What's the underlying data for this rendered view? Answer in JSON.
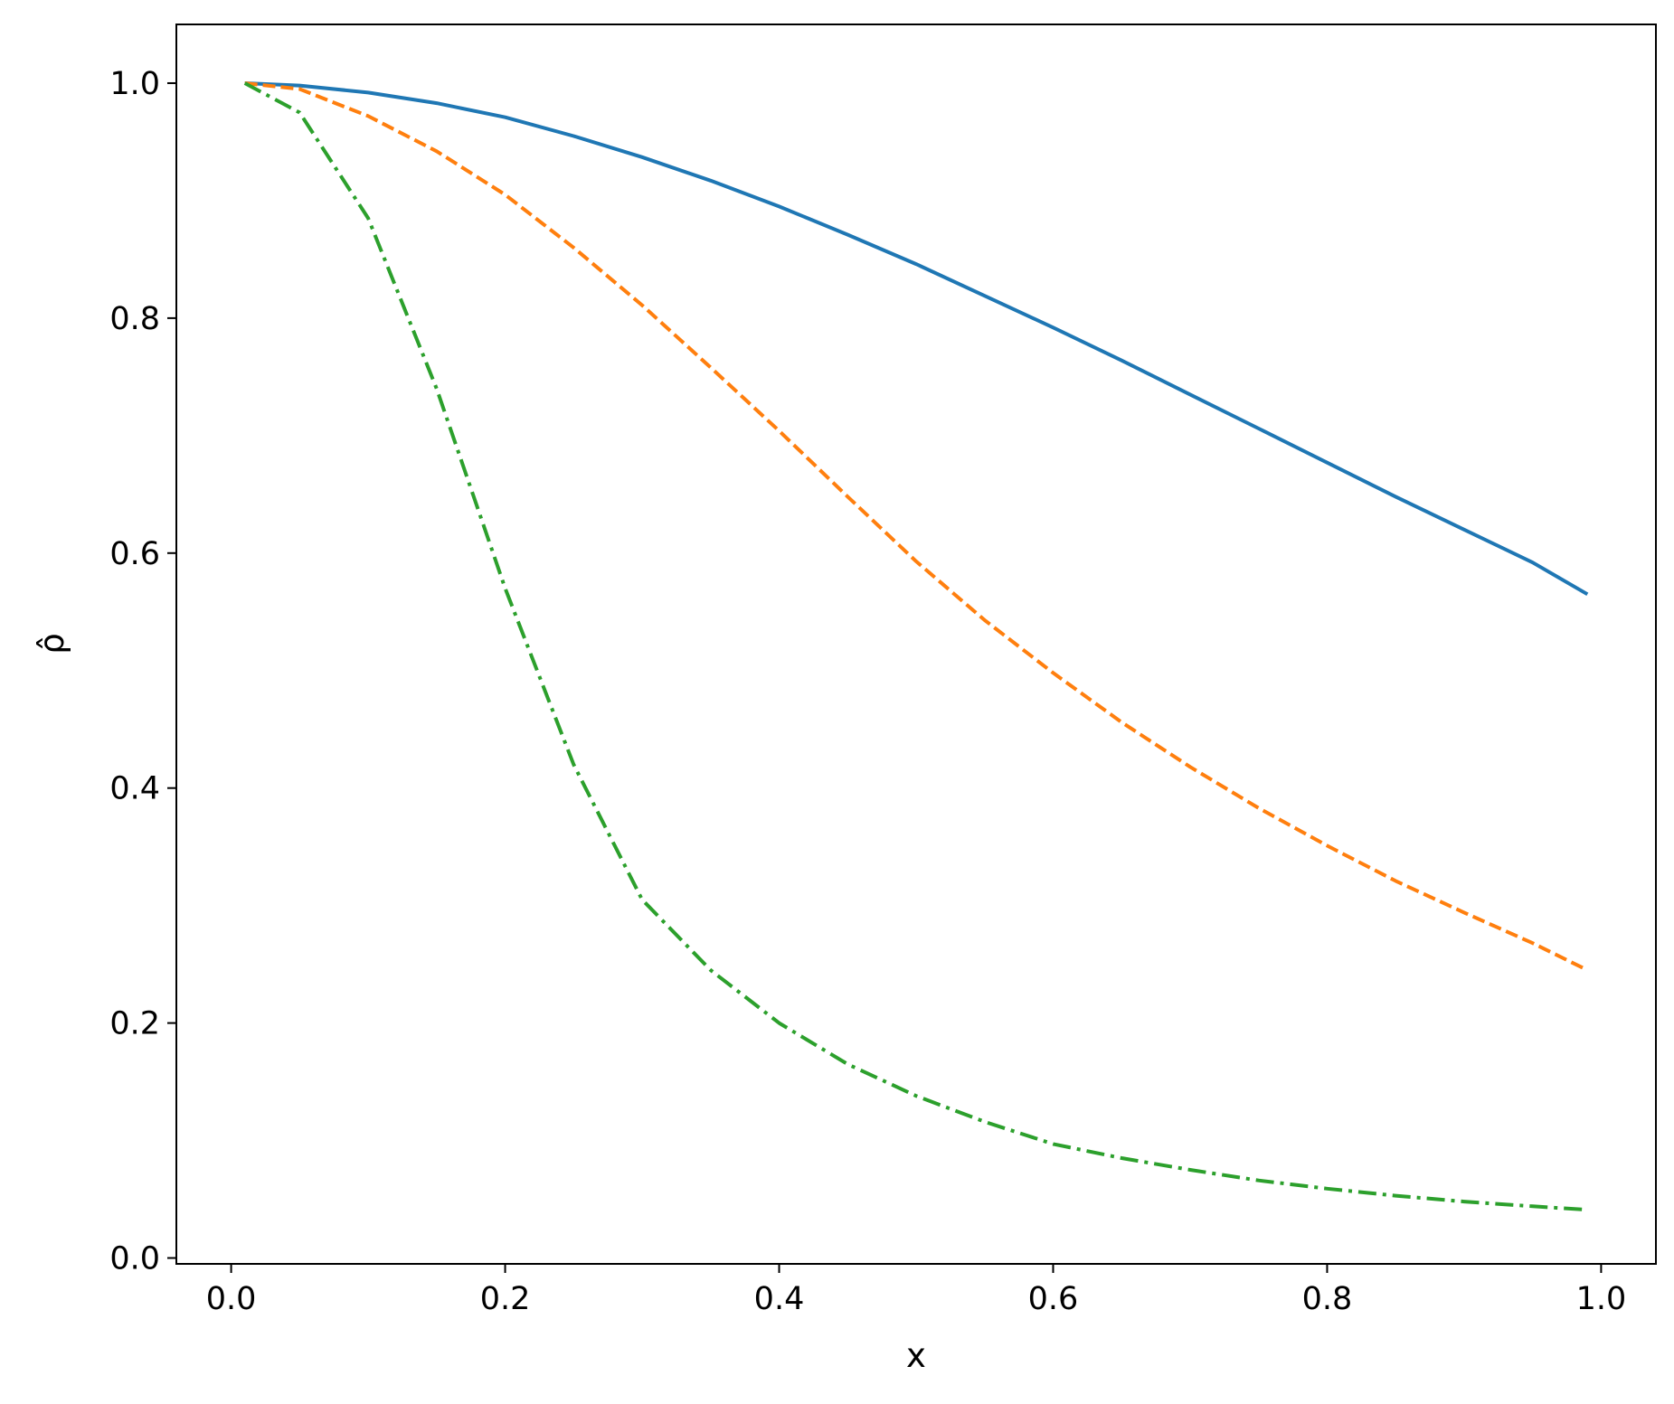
{
  "chart_data": {
    "type": "line",
    "title": "",
    "xlabel": "x",
    "ylabel": "ρ̂",
    "xlim": [
      -0.04,
      1.04
    ],
    "ylim": [
      -0.005,
      1.05
    ],
    "xticks": [
      0.0,
      0.2,
      0.4,
      0.6,
      0.8,
      1.0
    ],
    "xtick_labels": [
      "0.0",
      "0.2",
      "0.4",
      "0.6",
      "0.8",
      "1.0"
    ],
    "yticks": [
      0.0,
      0.2,
      0.4,
      0.6,
      0.8,
      1.0
    ],
    "ytick_labels": [
      "0.0",
      "0.2",
      "0.4",
      "0.6",
      "0.8",
      "1.0"
    ],
    "grid": false,
    "legend": false,
    "x": [
      0.01,
      0.05,
      0.1,
      0.15,
      0.2,
      0.25,
      0.3,
      0.35,
      0.4,
      0.45,
      0.5,
      0.55,
      0.6,
      0.65,
      0.7,
      0.75,
      0.8,
      0.85,
      0.9,
      0.95,
      0.99
    ],
    "series": [
      {
        "color": "#1f77b4",
        "linestyle": "solid",
        "values": [
          1.0,
          0.998,
          0.992,
          0.983,
          0.971,
          0.955,
          0.937,
          0.917,
          0.895,
          0.871,
          0.846,
          0.819,
          0.792,
          0.764,
          0.735,
          0.706,
          0.677,
          0.648,
          0.62,
          0.592,
          0.565
        ]
      },
      {
        "color": "#ff7f0e",
        "linestyle": "dashed",
        "values": [
          1.0,
          0.995,
          0.972,
          0.942,
          0.905,
          0.86,
          0.811,
          0.758,
          0.704,
          0.648,
          0.593,
          0.543,
          0.498,
          0.456,
          0.418,
          0.383,
          0.351,
          0.321,
          0.294,
          0.268,
          0.245
        ]
      },
      {
        "color": "#2ca02c",
        "linestyle": "dashdot",
        "values": [
          1.0,
          0.975,
          0.885,
          0.74,
          0.57,
          0.42,
          0.305,
          0.245,
          0.2,
          0.165,
          0.138,
          0.116,
          0.097,
          0.085,
          0.075,
          0.066,
          0.059,
          0.053,
          0.048,
          0.044,
          0.041
        ]
      }
    ]
  }
}
